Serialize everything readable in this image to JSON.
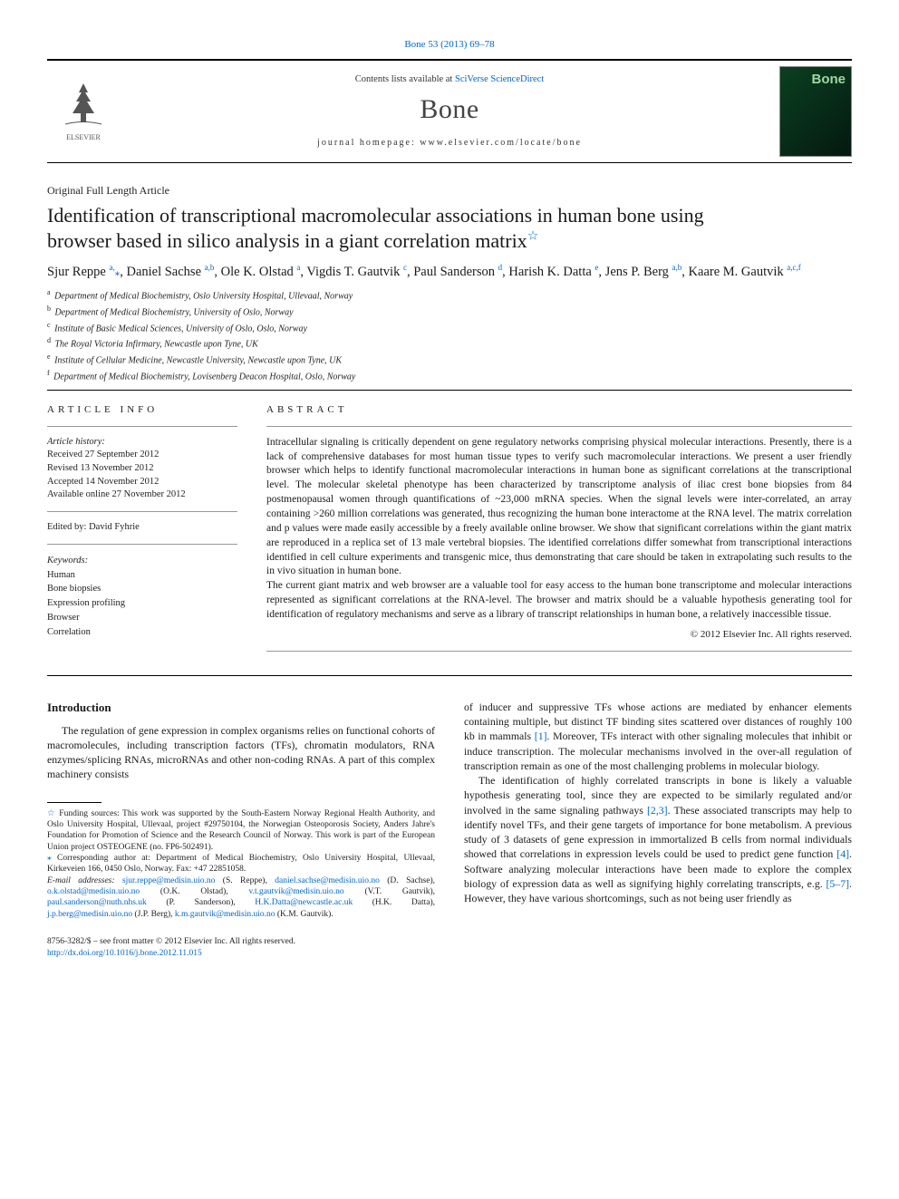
{
  "top_citation": "Bone 53 (2013) 69–78",
  "masthead": {
    "contents_prefix": "Contents lists available at ",
    "contents_link": "SciVerse ScienceDirect",
    "journal": "Bone",
    "homepage": "journal homepage: www.elsevier.com/locate/bone",
    "publisher": "ELSEVIER",
    "cover_label": "Bone"
  },
  "article": {
    "type": "Original Full Length Article",
    "title_line1": "Identification of transcriptional macromolecular associations in human bone using",
    "title_line2": "browser based in silico analysis in a giant correlation matrix",
    "star": "☆"
  },
  "authors": [
    {
      "name": "Sjur Reppe",
      "affs": "a,",
      "extra": "⁎"
    },
    {
      "name": "Daniel Sachse",
      "affs": "a,b"
    },
    {
      "name": "Ole K. Olstad",
      "affs": "a"
    },
    {
      "name": "Vigdis T. Gautvik",
      "affs": "c"
    },
    {
      "name": "Paul Sanderson",
      "affs": "d"
    },
    {
      "name": "Harish K. Datta",
      "affs": "e"
    },
    {
      "name": "Jens P. Berg",
      "affs": "a,b"
    },
    {
      "name": "Kaare M. Gautvik",
      "affs": "a,c,f"
    }
  ],
  "affiliations": [
    {
      "sup": "a",
      "text": "Department of Medical Biochemistry, Oslo University Hospital, Ullevaal, Norway"
    },
    {
      "sup": "b",
      "text": "Department of Medical Biochemistry, University of Oslo, Norway"
    },
    {
      "sup": "c",
      "text": "Institute of Basic Medical Sciences, University of Oslo, Oslo, Norway"
    },
    {
      "sup": "d",
      "text": "The Royal Victoria Infirmary, Newcastle upon Tyne, UK"
    },
    {
      "sup": "e",
      "text": "Institute of Cellular Medicine, Newcastle University, Newcastle upon Tyne, UK"
    },
    {
      "sup": "f",
      "text": "Department of Medical Biochemistry, Lovisenberg Deacon Hospital, Oslo, Norway"
    }
  ],
  "info": {
    "head": "ARTICLE INFO",
    "history_label": "Article history:",
    "received": "Received 27 September 2012",
    "revised": "Revised 13 November 2012",
    "accepted": "Accepted 14 November 2012",
    "online": "Available online 27 November 2012",
    "edited": "Edited by: David Fyhrie",
    "keywords_label": "Keywords:",
    "keywords": [
      "Human",
      "Bone biopsies",
      "Expression profiling",
      "Browser",
      "Correlation"
    ]
  },
  "abstract": {
    "head": "ABSTRACT",
    "p1": "Intracellular signaling is critically dependent on gene regulatory networks comprising physical molecular interactions. Presently, there is a lack of comprehensive databases for most human tissue types to verify such macromolecular interactions. We present a user friendly browser which helps to identify functional macromolecular interactions in human bone as significant correlations at the transcriptional level. The molecular skeletal phenotype has been characterized by transcriptome analysis of iliac crest bone biopsies from 84 postmenopausal women through quantifications of ~23,000 mRNA species. When the signal levels were inter-correlated, an array containing >260 million correlations was generated, thus recognizing the human bone interactome at the RNA level. The matrix correlation and p values were made easily accessible by a freely available online browser. We show that significant correlations within the giant matrix are reproduced in a replica set of 13 male vertebral biopsies. The identified correlations differ somewhat from transcriptional interactions identified in cell culture experiments and transgenic mice, thus demonstrating that care should be taken in extrapolating such results to the in vivo situation in human bone.",
    "p2": "The current giant matrix and web browser are a valuable tool for easy access to the human bone transcriptome and molecular interactions represented as significant correlations at the RNA-level. The browser and matrix should be a valuable hypothesis generating tool for identification of regulatory mechanisms and serve as a library of transcript relationships in human bone, a relatively inaccessible tissue.",
    "copyright": "© 2012 Elsevier Inc. All rights reserved."
  },
  "body": {
    "intro_head": "Introduction",
    "intro_p": "The regulation of gene expression in complex organisms relies on functional cohorts of macromolecules, including transcription factors (TFs), chromatin modulators, RNA enzymes/splicing RNAs, microRNAs and other non-coding RNAs. A part of this complex machinery consists",
    "col2_p1_a": "of inducer and suppressive TFs whose actions are mediated by enhancer elements containing multiple, but distinct TF binding sites scattered over distances of roughly 100 kb in mammals ",
    "col2_p1_ref1": "[1]",
    "col2_p1_b": ". Moreover, TFs interact with other signaling molecules that inhibit or induce transcription. The molecular mechanisms involved in the over-all regulation of transcription remain as one of the most challenging problems in molecular biology.",
    "col2_p2_a": "The identification of highly correlated transcripts in bone is likely a valuable hypothesis generating tool, since they are expected to be similarly regulated and/or involved in the same signaling pathways ",
    "col2_p2_ref1": "[2,3]",
    "col2_p2_b": ". These associated transcripts may help to identify novel TFs, and their gene targets of importance for bone metabolism. A previous study of 3 datasets of gene expression in immortalized B cells from normal individuals showed that correlations in expression levels could be used to predict gene function ",
    "col2_p2_ref2": "[4]",
    "col2_p2_c": ". Software analyzing molecular interactions have been made to explore the complex biology of expression data as well as signifying highly correlating transcripts, e.g. ",
    "col2_p2_ref3": "[5–7]",
    "col2_p2_d": ". However, they have various shortcomings, such as not being user friendly as"
  },
  "footnotes": {
    "funding_star": "☆",
    "funding": " Funding sources: This work was supported by the South-Eastern Norway Regional Health Authority, and Oslo University Hospital, Ullevaal, project #29750104, the Norwegian Osteoporosis Society, Anders Jahre's Foundation for Promotion of Science and the Research Council of Norway. This work is part of the European Union project OSTEOGENE (no. FP6-502491).",
    "corr_star": "⁎",
    "corr": " Corresponding author at: Department of Medical Biochemistry, Oslo University Hospital, Ullevaal, Kirkeveien 166, 0450 Oslo, Norway. Fax: +47 22851058.",
    "emails_label": "E-mail addresses: ",
    "emails": [
      {
        "addr": "sjur.reppe@medisin.uio.no",
        "who": " (S. Reppe),"
      },
      {
        "addr": "daniel.sachse@medisin.uio.no",
        "who": " (D. Sachse), "
      },
      {
        "addr": "o.k.olstad@medisin.uio.no",
        "who": " (O.K. Olstad),"
      },
      {
        "addr": "v.t.gautvik@medisin.uio.no",
        "who": " (V.T. Gautvik), "
      },
      {
        "addr": "paul.sanderson@nuth.nhs.uk",
        "who": " (P. Sanderson),"
      },
      {
        "addr": "H.K.Datta@newcastle.ac.uk",
        "who": " (H.K. Datta), "
      },
      {
        "addr": "j.p.berg@medisin.uio.no",
        "who": " (J.P. Berg),"
      },
      {
        "addr": "k.m.gautvik@medisin.uio.no",
        "who": " (K.M. Gautvik)."
      }
    ]
  },
  "footer": {
    "line1": "8756-3282/$ – see front matter © 2012 Elsevier Inc. All rights reserved.",
    "doi": "http://dx.doi.org/10.1016/j.bone.2012.11.015"
  },
  "colors": {
    "link": "#0066cc",
    "text": "#1a1a1a",
    "cover_bg1": "#0a4020",
    "cover_bg2": "#051810",
    "cover_title": "#9fd89f"
  }
}
